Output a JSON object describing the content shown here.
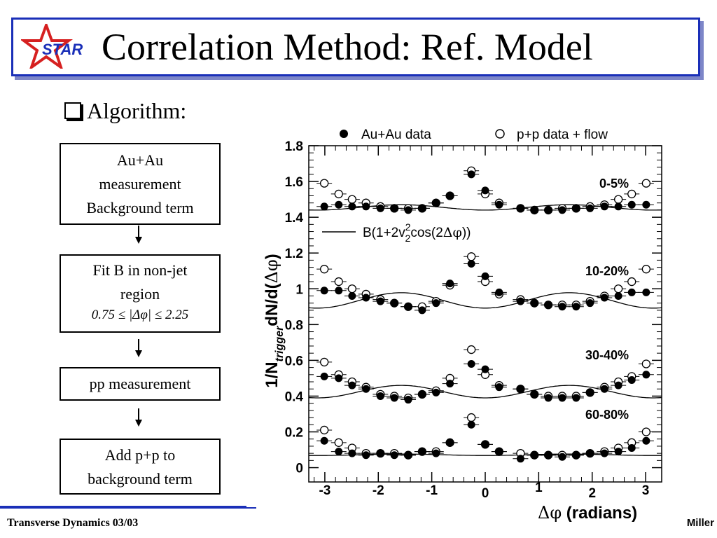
{
  "slide": {
    "title": "Correlation Method: Ref. Model",
    "logo_text": "STAR",
    "bullet": "Algorithm:",
    "footer_left": "Transverse Dynamics 03/03",
    "footer_right": "Miller"
  },
  "flow": {
    "step1": [
      "Au+Au",
      "measurement",
      "Background term"
    ],
    "step2": [
      "Fit B in non-jet",
      "region"
    ],
    "step2_formula": "0.75 ≤ |Δφ| ≤ 2.25",
    "step3": "pp measurement",
    "step4": [
      "Add p+p to",
      "background term"
    ]
  },
  "colors": {
    "title_border": "#1a2fb8",
    "title_shadow": "#7d86c8",
    "logo_star": "#d62020",
    "logo_text": "#1a2fb8"
  },
  "chart_data": {
    "type": "scatter",
    "xlabel": "Δφ (radians)",
    "ylabel": "1/N_trigger dN/d(Δφ)",
    "xlim": [
      -3.3,
      3.3
    ],
    "ylim": [
      -0.08,
      1.8
    ],
    "xticks": [
      -3,
      -2,
      -1,
      0,
      1,
      2,
      3
    ],
    "yticks": [
      0,
      0.2,
      0.4,
      0.6,
      0.8,
      1,
      1.2,
      1.4,
      1.6,
      1.8
    ],
    "ytick_labels": [
      "0",
      "0.2",
      "0.4",
      "0.6",
      "0.8",
      "1",
      "1.2",
      "1.4",
      "1.6",
      "1.8"
    ],
    "legend": {
      "filled": "Au+Au data",
      "open": "p+p data + flow",
      "line": "B(1+2v²₂cos(2Δφ))",
      "placement": "top"
    },
    "x": [
      -3.01,
      -2.74,
      -2.49,
      -2.23,
      -1.96,
      -1.7,
      -1.44,
      -1.18,
      -0.92,
      -0.66,
      -0.26,
      0.0,
      0.26,
      0.66,
      0.92,
      1.18,
      1.44,
      1.7,
      1.96,
      2.23,
      2.49,
      2.74,
      3.01
    ],
    "panels": [
      {
        "label": "0-5%",
        "fit": {
          "B": 1.455,
          "amp": 0.015
        },
        "auau": [
          1.46,
          1.47,
          1.46,
          1.46,
          1.45,
          1.45,
          1.44,
          1.45,
          1.48,
          1.52,
          1.64,
          1.55,
          1.47,
          1.45,
          1.44,
          1.44,
          1.44,
          1.45,
          1.45,
          1.46,
          1.46,
          1.47,
          1.47
        ],
        "pp": [
          1.59,
          1.53,
          1.5,
          1.48,
          1.46,
          1.45,
          1.45,
          1.45,
          1.48,
          1.52,
          1.66,
          1.53,
          1.48,
          1.45,
          1.44,
          1.44,
          1.45,
          1.45,
          1.46,
          1.47,
          1.5,
          1.53,
          1.59
        ]
      },
      {
        "label": "10-20%",
        "fit": {
          "B": 0.935,
          "amp": 0.043
        },
        "auau": [
          0.99,
          0.99,
          0.96,
          0.95,
          0.93,
          0.92,
          0.9,
          0.88,
          0.92,
          1.03,
          1.14,
          1.07,
          0.98,
          0.93,
          0.92,
          0.91,
          0.9,
          0.9,
          0.92,
          0.95,
          0.96,
          0.98,
          0.98
        ],
        "pp": [
          1.11,
          1.04,
          1.0,
          0.97,
          0.94,
          0.92,
          0.9,
          0.9,
          0.93,
          1.02,
          1.18,
          1.04,
          0.97,
          0.94,
          0.92,
          0.91,
          0.91,
          0.91,
          0.93,
          0.96,
          1.0,
          1.04,
          1.11
        ]
      },
      {
        "label": "30-40%",
        "fit": {
          "B": 0.425,
          "amp": 0.035
        },
        "auau": [
          0.51,
          0.5,
          0.46,
          0.44,
          0.4,
          0.39,
          0.38,
          0.41,
          0.42,
          0.47,
          0.58,
          0.55,
          0.45,
          0.44,
          0.41,
          0.39,
          0.39,
          0.39,
          0.42,
          0.44,
          0.46,
          0.49,
          0.52
        ],
        "pp": [
          0.59,
          0.52,
          0.48,
          0.45,
          0.41,
          0.4,
          0.39,
          0.41,
          0.43,
          0.5,
          0.66,
          0.52,
          0.46,
          0.44,
          0.41,
          0.4,
          0.4,
          0.4,
          0.42,
          0.45,
          0.48,
          0.51,
          0.58
        ]
      },
      {
        "label": "60-80%",
        "fit": {
          "B": 0.072,
          "amp": 0.004
        },
        "auau": [
          0.15,
          0.09,
          0.08,
          0.07,
          0.08,
          0.07,
          0.07,
          0.09,
          0.08,
          0.14,
          0.24,
          0.13,
          0.09,
          0.05,
          0.07,
          0.07,
          0.06,
          0.07,
          0.08,
          0.08,
          0.09,
          0.11,
          0.15
        ],
        "pp": [
          0.21,
          0.14,
          0.11,
          0.08,
          0.08,
          0.08,
          0.07,
          0.09,
          0.09,
          0.14,
          0.28,
          0.13,
          0.09,
          0.08,
          0.07,
          0.07,
          0.07,
          0.07,
          0.08,
          0.09,
          0.11,
          0.14,
          0.2
        ]
      }
    ]
  }
}
